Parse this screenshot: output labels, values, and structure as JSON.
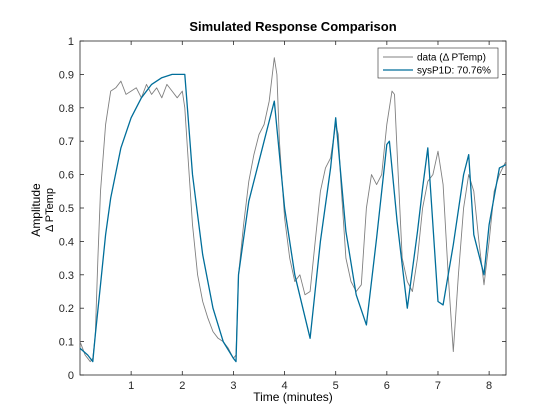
{
  "chart_data": {
    "type": "line",
    "title": "Simulated Response Comparison",
    "xlabel": "Time (minutes)",
    "ylabel": "Amplitude",
    "ylabel_sub": "Δ PTemp",
    "xlim": [
      0,
      8.33
    ],
    "ylim": [
      0,
      1
    ],
    "xticks": [
      1,
      2,
      3,
      4,
      5,
      6,
      7,
      8
    ],
    "yticks": [
      0,
      0.1,
      0.2,
      0.3,
      0.4,
      0.5,
      0.6,
      0.7,
      0.8,
      0.9,
      1
    ],
    "grid": false,
    "legend_position": "top-right",
    "colors": {
      "data": "#808080",
      "model": "#006e9a"
    },
    "series": [
      {
        "name": "data (Δ PTemp)",
        "x": [
          0,
          0.05,
          0.1,
          0.15,
          0.2,
          0.25,
          0.3,
          0.35,
          0.4,
          0.5,
          0.6,
          0.7,
          0.8,
          0.9,
          1.0,
          1.1,
          1.2,
          1.3,
          1.4,
          1.5,
          1.6,
          1.7,
          1.8,
          1.9,
          2.0,
          2.05,
          2.1,
          2.2,
          2.3,
          2.4,
          2.5,
          2.6,
          2.7,
          2.8,
          2.9,
          3.0,
          3.05,
          3.1,
          3.2,
          3.3,
          3.4,
          3.5,
          3.6,
          3.7,
          3.8,
          3.85,
          3.9,
          4.0,
          4.1,
          4.2,
          4.3,
          4.4,
          4.5,
          4.6,
          4.7,
          4.8,
          4.9,
          5.0,
          5.05,
          5.1,
          5.2,
          5.3,
          5.4,
          5.5,
          5.6,
          5.7,
          5.8,
          5.9,
          6.0,
          6.1,
          6.15,
          6.2,
          6.3,
          6.4,
          6.5,
          6.6,
          6.7,
          6.8,
          6.9,
          7.0,
          7.1,
          7.2,
          7.3,
          7.4,
          7.5,
          7.6,
          7.7,
          7.8,
          7.9,
          8.0,
          8.1,
          8.2,
          8.33
        ],
        "y": [
          0.1,
          0.08,
          0.06,
          0.05,
          0.04,
          0.05,
          0.12,
          0.35,
          0.55,
          0.75,
          0.85,
          0.86,
          0.88,
          0.84,
          0.85,
          0.86,
          0.83,
          0.87,
          0.84,
          0.86,
          0.83,
          0.87,
          0.85,
          0.83,
          0.85,
          0.8,
          0.68,
          0.45,
          0.3,
          0.22,
          0.17,
          0.13,
          0.11,
          0.1,
          0.08,
          0.05,
          0.06,
          0.3,
          0.45,
          0.58,
          0.66,
          0.72,
          0.75,
          0.82,
          0.95,
          0.9,
          0.7,
          0.47,
          0.35,
          0.28,
          0.3,
          0.24,
          0.25,
          0.4,
          0.55,
          0.62,
          0.65,
          0.75,
          0.72,
          0.58,
          0.35,
          0.28,
          0.25,
          0.27,
          0.5,
          0.6,
          0.57,
          0.6,
          0.75,
          0.85,
          0.84,
          0.67,
          0.35,
          0.28,
          0.25,
          0.35,
          0.5,
          0.58,
          0.6,
          0.67,
          0.57,
          0.3,
          0.07,
          0.3,
          0.5,
          0.6,
          0.55,
          0.4,
          0.27,
          0.4,
          0.55,
          0.6,
          0.64
        ]
      },
      {
        "name": "sysP1D: 70.76%",
        "x": [
          0,
          0.15,
          0.25,
          0.3,
          0.4,
          0.5,
          0.6,
          0.8,
          1.0,
          1.2,
          1.4,
          1.6,
          1.8,
          2.05,
          2.1,
          2.2,
          2.4,
          2.6,
          2.8,
          3.0,
          3.05,
          3.1,
          3.3,
          3.5,
          3.8,
          4.0,
          4.2,
          4.5,
          4.7,
          4.9,
          5.0,
          5.2,
          5.4,
          5.6,
          5.8,
          6.0,
          6.05,
          6.2,
          6.4,
          6.6,
          6.7,
          6.8,
          7.0,
          7.1,
          7.3,
          7.5,
          7.6,
          7.7,
          7.9,
          8.0,
          8.2,
          8.33
        ],
        "y": [
          0.08,
          0.06,
          0.04,
          0.12,
          0.27,
          0.42,
          0.53,
          0.68,
          0.77,
          0.83,
          0.87,
          0.89,
          0.9,
          0.9,
          0.8,
          0.6,
          0.36,
          0.2,
          0.1,
          0.05,
          0.04,
          0.3,
          0.52,
          0.64,
          0.82,
          0.5,
          0.3,
          0.11,
          0.4,
          0.62,
          0.77,
          0.43,
          0.24,
          0.15,
          0.41,
          0.69,
          0.7,
          0.46,
          0.2,
          0.43,
          0.56,
          0.68,
          0.22,
          0.21,
          0.39,
          0.6,
          0.66,
          0.42,
          0.3,
          0.45,
          0.62,
          0.63
        ]
      }
    ]
  }
}
